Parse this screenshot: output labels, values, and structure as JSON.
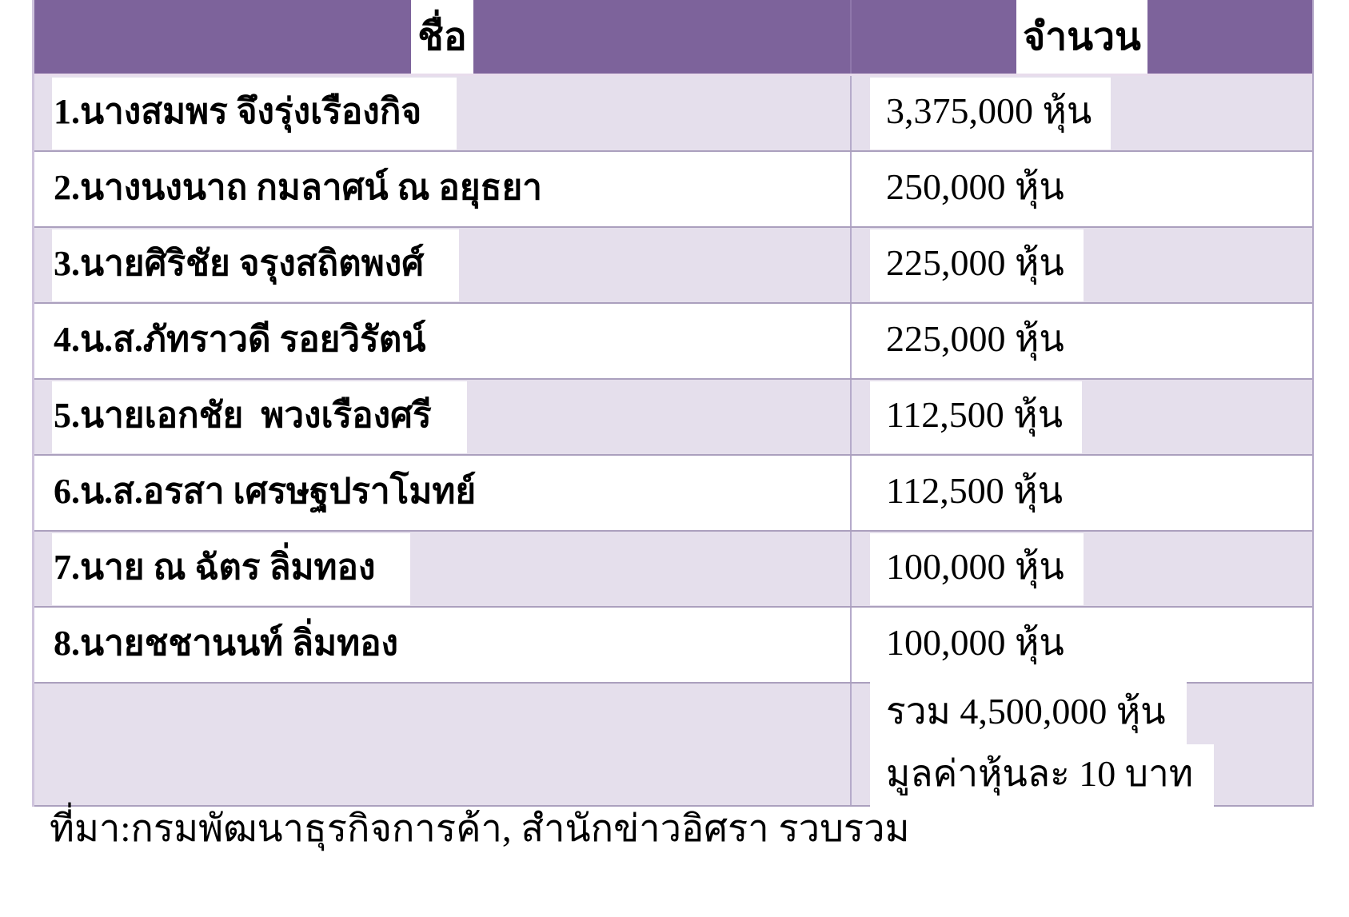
{
  "table": {
    "columns": [
      "ชื่อ",
      "จำนวน"
    ],
    "rows": [
      {
        "name": "1.นางสมพร จึงรุ่งเรืองกิจ",
        "amount": "3,375,000 หุ้น"
      },
      {
        "name": "2.นางนงนาถ กมลาศน์ ณ อยุธยา",
        "amount": "250,000 หุ้น"
      },
      {
        "name": "3.นายศิริชัย จรุงสถิตพงศ์",
        "amount": "225,000 หุ้น"
      },
      {
        "name": "4.น.ส.ภัทราวดี รอยวิรัตน์",
        "amount": "225,000 หุ้น"
      },
      {
        "name": "5.นายเอกชัย  พวงเรืองศรี",
        "amount": "112,500 หุ้น"
      },
      {
        "name": "6.น.ส.อรสา เศรษฐปราโมทย์",
        "amount": "112,500 หุ้น"
      },
      {
        "name": "7.นาย ณ ฉัตร ลิ่มทอง",
        "amount": "100,000 หุ้น"
      },
      {
        "name": "8.นายชชานนท์ ลิ่มทอง",
        "amount": "100,000 หุ้น"
      }
    ],
    "summary": {
      "total_shares": "รวม 4,500,000 หุ้น",
      "par_value": "มูลค่าหุ้นละ 10 บาท"
    }
  },
  "caption": "ที่มา:กรมพัฒนาธุรกิจการค้า, สำนักข่าวอิศรา รวบรวม",
  "colors": {
    "header_bg": "#7d639b",
    "row_alt_bg": "#e5dfec",
    "row_bg": "#ffffff",
    "border": "#aba0be",
    "text": "#000000"
  }
}
